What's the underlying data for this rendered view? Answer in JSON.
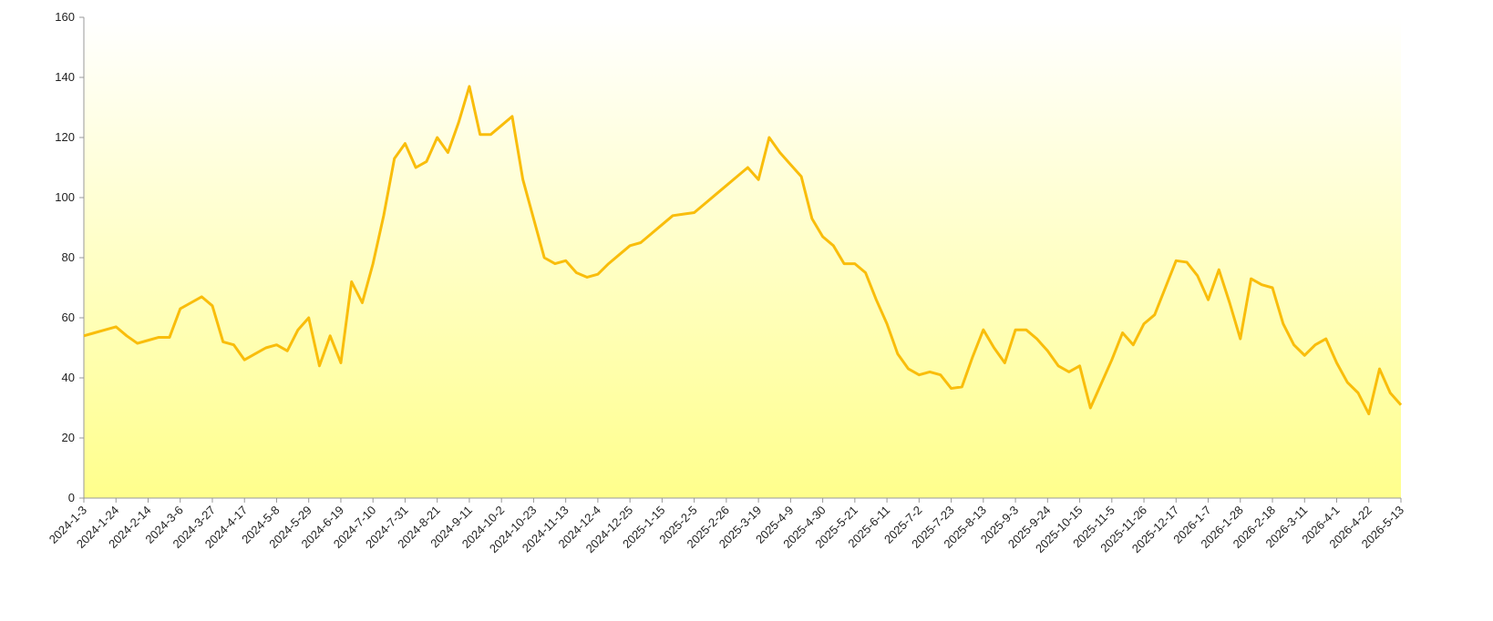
{
  "chart_data": {
    "type": "line",
    "x": [
      "2024-1-3",
      "2024-1-10",
      "2024-1-17",
      "2024-1-24",
      "2024-1-31",
      "2024-2-7",
      "2024-2-14",
      "2024-2-21",
      "2024-2-28",
      "2024-3-6",
      "2024-3-13",
      "2024-3-20",
      "2024-3-27",
      "2024-4-3",
      "2024-4-10",
      "2024-4-17",
      "2024-4-24",
      "2024-5-1",
      "2024-5-8",
      "2024-5-15",
      "2024-5-22",
      "2024-5-29",
      "2024-6-5",
      "2024-6-12",
      "2024-6-19",
      "2024-6-26",
      "2024-7-3",
      "2024-7-10",
      "2024-7-17",
      "2024-7-24",
      "2024-7-31",
      "2024-8-7",
      "2024-8-14",
      "2024-8-21",
      "2024-8-28",
      "2024-9-4",
      "2024-9-11",
      "2024-9-18",
      "2024-9-25",
      "2024-10-2",
      "2024-10-9",
      "2024-10-16",
      "2024-10-23",
      "2024-10-30",
      "2024-11-6",
      "2024-11-13",
      "2024-11-20",
      "2024-11-27",
      "2024-12-4",
      "2024-12-11",
      "2024-12-18",
      "2024-12-25",
      "2025-1-1",
      "2025-1-8",
      "2025-1-15",
      "2025-1-22",
      "2025-1-29",
      "2025-2-5",
      "2025-2-12",
      "2025-2-19",
      "2025-2-26",
      "2025-3-5",
      "2025-3-12",
      "2025-3-19",
      "2025-3-26",
      "2025-4-2",
      "2025-4-9",
      "2025-4-16",
      "2025-4-23",
      "2025-4-30",
      "2025-5-7",
      "2025-5-14",
      "2025-5-21",
      "2025-5-28",
      "2025-6-4",
      "2025-6-11",
      "2025-6-18",
      "2025-6-25",
      "2025-7-2",
      "2025-7-9",
      "2025-7-16",
      "2025-7-23",
      "2025-7-30",
      "2025-8-6",
      "2025-8-13",
      "2025-8-20",
      "2025-8-27",
      "2025-9-3",
      "2025-9-10",
      "2025-9-17",
      "2025-9-24",
      "2025-10-1",
      "2025-10-8",
      "2025-10-15",
      "2025-10-22",
      "2025-10-29",
      "2025-11-5",
      "2025-11-12",
      "2025-11-19",
      "2025-11-26",
      "2025-12-3",
      "2025-12-10",
      "2025-12-17",
      "2025-12-24",
      "2025-12-31",
      "2026-1-7",
      "2026-1-14",
      "2026-1-21",
      "2026-1-28",
      "2026-2-4",
      "2026-2-11",
      "2026-2-18",
      "2026-2-25",
      "2026-3-4",
      "2026-3-11",
      "2026-3-18",
      "2026-3-25",
      "2026-4-1",
      "2026-4-8",
      "2026-4-15",
      "2026-4-22",
      "2026-4-29",
      "2026-5-6",
      "2026-5-13"
    ],
    "series": [
      {
        "color": "#f9bd0b",
        "values": [
          54,
          55,
          56,
          57,
          54,
          51.5,
          52.5,
          53.5,
          53.5,
          63,
          65,
          67,
          64,
          52,
          51,
          46,
          48,
          50,
          51,
          49,
          56,
          60,
          44,
          54,
          45,
          72,
          65,
          78,
          94,
          113,
          118,
          110,
          112,
          120,
          115,
          125,
          137,
          121,
          121,
          124,
          127,
          106,
          93,
          80,
          78,
          79,
          75,
          73.5,
          74.5,
          78,
          81,
          84,
          85,
          88,
          91,
          94,
          94.5,
          95,
          98,
          101,
          104,
          107,
          110,
          106,
          120,
          115,
          111,
          107,
          93,
          87,
          84,
          78,
          78,
          75,
          66,
          58,
          48,
          43,
          41,
          42,
          41,
          36.5,
          37,
          47,
          56,
          50,
          45,
          56,
          56,
          53,
          49,
          44,
          42,
          44,
          30,
          38,
          46,
          55,
          51,
          58,
          61,
          70,
          79,
          78.5,
          74,
          66,
          76,
          65,
          53,
          73,
          71,
          70,
          58,
          51,
          47.5,
          51,
          53,
          45,
          38.5,
          35,
          28,
          43,
          35,
          31
        ]
      }
    ],
    "xlim": [
      "2024-1-3",
      "2026-5-13"
    ],
    "xticks": [
      "2024-1-3",
      "2024-1-24",
      "2024-2-14",
      "2024-3-6",
      "2024-3-27",
      "2024-4-17",
      "2024-5-8",
      "2024-5-29",
      "2024-6-19",
      "2024-7-10",
      "2024-7-31",
      "2024-8-21",
      "2024-9-11",
      "2024-10-2",
      "2024-10-23",
      "2024-11-13",
      "2024-12-4",
      "2024-12-25",
      "2025-1-15",
      "2025-2-5",
      "2025-2-26",
      "2025-3-19",
      "2025-4-9",
      "2025-4-30",
      "2025-5-21",
      "2025-6-11",
      "2025-7-2",
      "2025-7-23",
      "2025-8-13",
      "2025-9-3",
      "2025-9-24",
      "2025-10-15",
      "2025-11-5",
      "2025-11-26",
      "2025-12-17",
      "2026-1-7",
      "2026-1-28",
      "2026-2-18",
      "2026-3-11",
      "2026-4-1",
      "2026-4-22",
      "2026-5-13"
    ],
    "ylim": [
      0,
      160
    ],
    "yticks": [
      0,
      20,
      40,
      60,
      80,
      100,
      120,
      140,
      160
    ]
  }
}
